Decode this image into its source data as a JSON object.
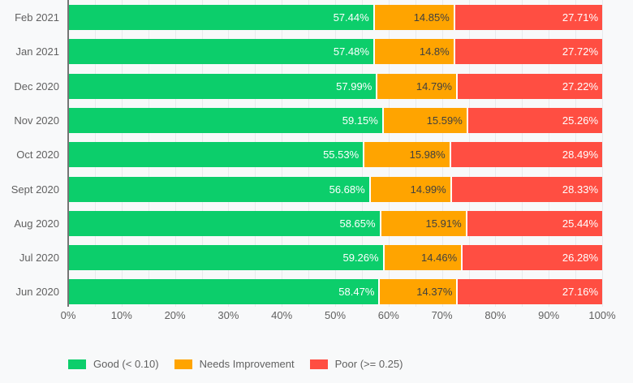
{
  "chart_data": {
    "type": "bar",
    "orientation": "horizontal",
    "stacked": true,
    "title": "",
    "categories": [
      "Feb 2021",
      "Jan 2021",
      "Dec 2020",
      "Nov 2020",
      "Oct 2020",
      "Sept 2020",
      "Aug 2020",
      "Jul 2020",
      "Jun 2020"
    ],
    "series": [
      {
        "key": "good",
        "name": "Good (< 0.10)",
        "color": "#0CCE6B",
        "label_color": "#ffffff",
        "values": [
          57.44,
          57.48,
          57.99,
          59.15,
          55.53,
          56.68,
          58.65,
          59.26,
          58.47
        ],
        "labels": [
          "57.44%",
          "57.48%",
          "57.99%",
          "59.15%",
          "55.53%",
          "56.68%",
          "58.65%",
          "59.26%",
          "58.47%"
        ]
      },
      {
        "key": "needs-improvement",
        "name": "Needs Improvement",
        "color": "#FFA400",
        "label_color": "#404040",
        "values": [
          14.85,
          14.8,
          14.79,
          15.59,
          15.98,
          14.99,
          15.91,
          14.46,
          14.37
        ],
        "labels": [
          "14.85%",
          "14.8%",
          "14.79%",
          "15.59%",
          "15.98%",
          "14.99%",
          "15.91%",
          "14.46%",
          "14.37%"
        ]
      },
      {
        "key": "poor",
        "name": "Poor (>= 0.25)",
        "color": "#FF4E42",
        "label_color": "#ffffff",
        "values": [
          27.71,
          27.72,
          27.22,
          25.26,
          28.49,
          28.33,
          25.44,
          26.28,
          27.16
        ],
        "labels": [
          "27.71%",
          "27.72%",
          "27.22%",
          "25.26%",
          "28.49%",
          "28.33%",
          "25.44%",
          "26.28%",
          "27.16%"
        ]
      }
    ],
    "x_axis": {
      "min": 0,
      "max": 100,
      "tick_labels": [
        "0%",
        "10%",
        "20%",
        "30%",
        "40%",
        "50%",
        "60%",
        "70%",
        "80%",
        "90%",
        "100%"
      ],
      "minor_gridline_step_percent": 5
    },
    "grid": true,
    "legend_position": "bottom"
  },
  "colors": {
    "background": "#f8f9fa",
    "gridline": "#e8eaed",
    "axis_baseline": "#757575",
    "axis_text": "#616161",
    "segment_separator": "#ffffff"
  }
}
